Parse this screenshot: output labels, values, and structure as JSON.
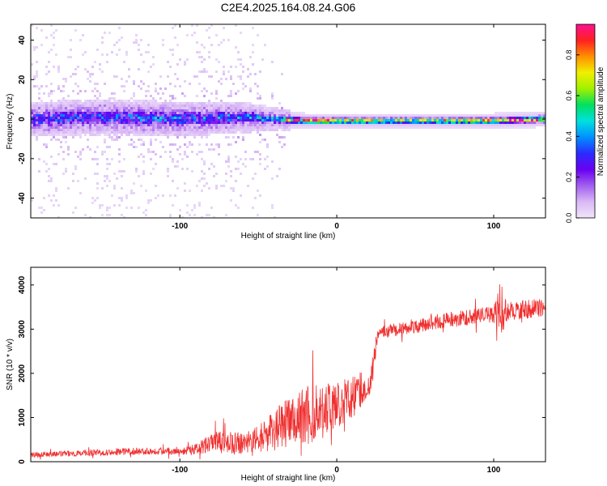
{
  "figure_title": "C2E4.2025.164.08.24.G06",
  "colors": {
    "snr_line": "#f03030",
    "axis": "#000000",
    "colormap": [
      "#f0e6fa",
      "#d9b8f5",
      "#a15ff0",
      "#6a00f0",
      "#2b2bff",
      "#0090ff",
      "#00e0e0",
      "#00e060",
      "#a0f000",
      "#f0f000",
      "#ff9000",
      "#ff2020",
      "#ff1090"
    ]
  },
  "chart_data": [
    {
      "type": "heatmap",
      "title": "",
      "xlabel": "Height of straight line (km)",
      "ylabel": "Frequency (Hz)",
      "xlim": [
        -195,
        133
      ],
      "ylim": [
        -50,
        48
      ],
      "xticks": [
        -100,
        0,
        100
      ],
      "xtick_labels": [
        "-100",
        "0",
        "100"
      ],
      "yticks": [
        -40,
        -20,
        0,
        20,
        40
      ],
      "ytick_labels": [
        "-40",
        "-20",
        "0",
        "20",
        "40"
      ],
      "colorbar": {
        "label": "Normalized spectral amplitude",
        "range": [
          0,
          0.95
        ],
        "ticks": [
          0,
          0.2,
          0.4,
          0.6,
          0.8
        ],
        "tick_labels": [
          "0.0",
          "0.2",
          "0.4",
          "0.6",
          "0.8"
        ]
      },
      "ridge": {
        "description": "Energy concentrated near 0 Hz; broadband scatter for heights below about -55 km, narrow band above",
        "x": [
          -195,
          -150,
          -100,
          -60,
          -40,
          -20,
          0,
          20,
          40,
          60,
          80,
          100,
          133
        ],
        "center_hz": [
          0,
          1,
          0,
          1,
          0,
          -1,
          -1,
          -1,
          -1,
          -1,
          -1,
          -1,
          0
        ],
        "band_halfwidth_hz": [
          6,
          6,
          6,
          5,
          3,
          2,
          2,
          2,
          2,
          2,
          2,
          2,
          2
        ],
        "peak_amplitude": [
          0.3,
          0.3,
          0.32,
          0.35,
          0.55,
          0.9,
          0.9,
          0.75,
          0.7,
          0.72,
          0.85,
          0.88,
          0.9
        ]
      }
    },
    {
      "type": "line",
      "title": "",
      "xlabel": "Height of straight line (km)",
      "ylabel": "SNR (10 * v/v)",
      "xlim": [
        -195,
        133
      ],
      "ylim": [
        0,
        4400
      ],
      "xticks": [
        -100,
        0,
        100
      ],
      "xtick_labels": [
        "-100",
        "0",
        "100"
      ],
      "yticks": [
        0,
        1000,
        2000,
        3000,
        4000
      ],
      "ytick_labels": [
        "0",
        "1000",
        "2000",
        "3000",
        "4000"
      ],
      "series": [
        {
          "name": "SNR",
          "x": [
            -195,
            -180,
            -160,
            -140,
            -120,
            -100,
            -90,
            -80,
            -70,
            -60,
            -50,
            -40,
            -30,
            -20,
            -10,
            0,
            10,
            20,
            23,
            26,
            30,
            40,
            50,
            60,
            70,
            80,
            90,
            100,
            104,
            110,
            120,
            133
          ],
          "values": [
            160,
            170,
            200,
            230,
            240,
            250,
            280,
            400,
            450,
            380,
            520,
            700,
            950,
            1050,
            1150,
            1300,
            1450,
            1750,
            2100,
            2900,
            2950,
            3000,
            3050,
            3150,
            3200,
            3250,
            3300,
            3350,
            3450,
            3400,
            3450,
            3500
          ],
          "noise_amplitude": [
            60,
            60,
            70,
            80,
            80,
            90,
            120,
            250,
            280,
            250,
            300,
            450,
            600,
            700,
            650,
            550,
            500,
            350,
            300,
            150,
            150,
            150,
            160,
            170,
            180,
            180,
            190,
            200,
            600,
            220,
            220,
            200
          ]
        }
      ]
    }
  ]
}
